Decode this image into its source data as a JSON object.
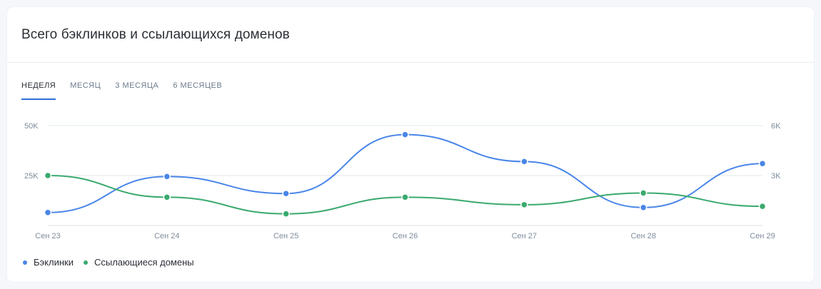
{
  "card": {
    "title": "Всего бэклинков и ссылающихся доменов"
  },
  "tabs": [
    {
      "label": "НЕДЕЛЯ",
      "active": true
    },
    {
      "label": "МЕСЯЦ",
      "active": false
    },
    {
      "label": "3 МЕСЯЦА",
      "active": false
    },
    {
      "label": "6 МЕСЯЦЕВ",
      "active": false
    }
  ],
  "chart_data": {
    "type": "line",
    "x": [
      "Сен 23",
      "Сен 24",
      "Сен 25",
      "Сен 26",
      "Сен 27",
      "Сен 28",
      "Сен 29"
    ],
    "left_axis": {
      "ticks": [
        "25K",
        "50K"
      ],
      "ylim": [
        0,
        50000
      ]
    },
    "right_axis": {
      "ticks": [
        "3K",
        "6K"
      ],
      "ylim": [
        0,
        6000
      ]
    },
    "grid": true,
    "series": [
      {
        "name": "Бэклинки",
        "axis": "left",
        "color": "#4a86e8",
        "values": [
          6500,
          24500,
          16000,
          45500,
          32000,
          9000,
          31000
        ]
      },
      {
        "name": "Ссылающиеся домены",
        "axis": "right",
        "color": "#3aaa6e",
        "values": [
          3000,
          1700,
          700,
          1700,
          1250,
          1950,
          1150
        ]
      }
    ],
    "legend_position": "bottom-left"
  }
}
